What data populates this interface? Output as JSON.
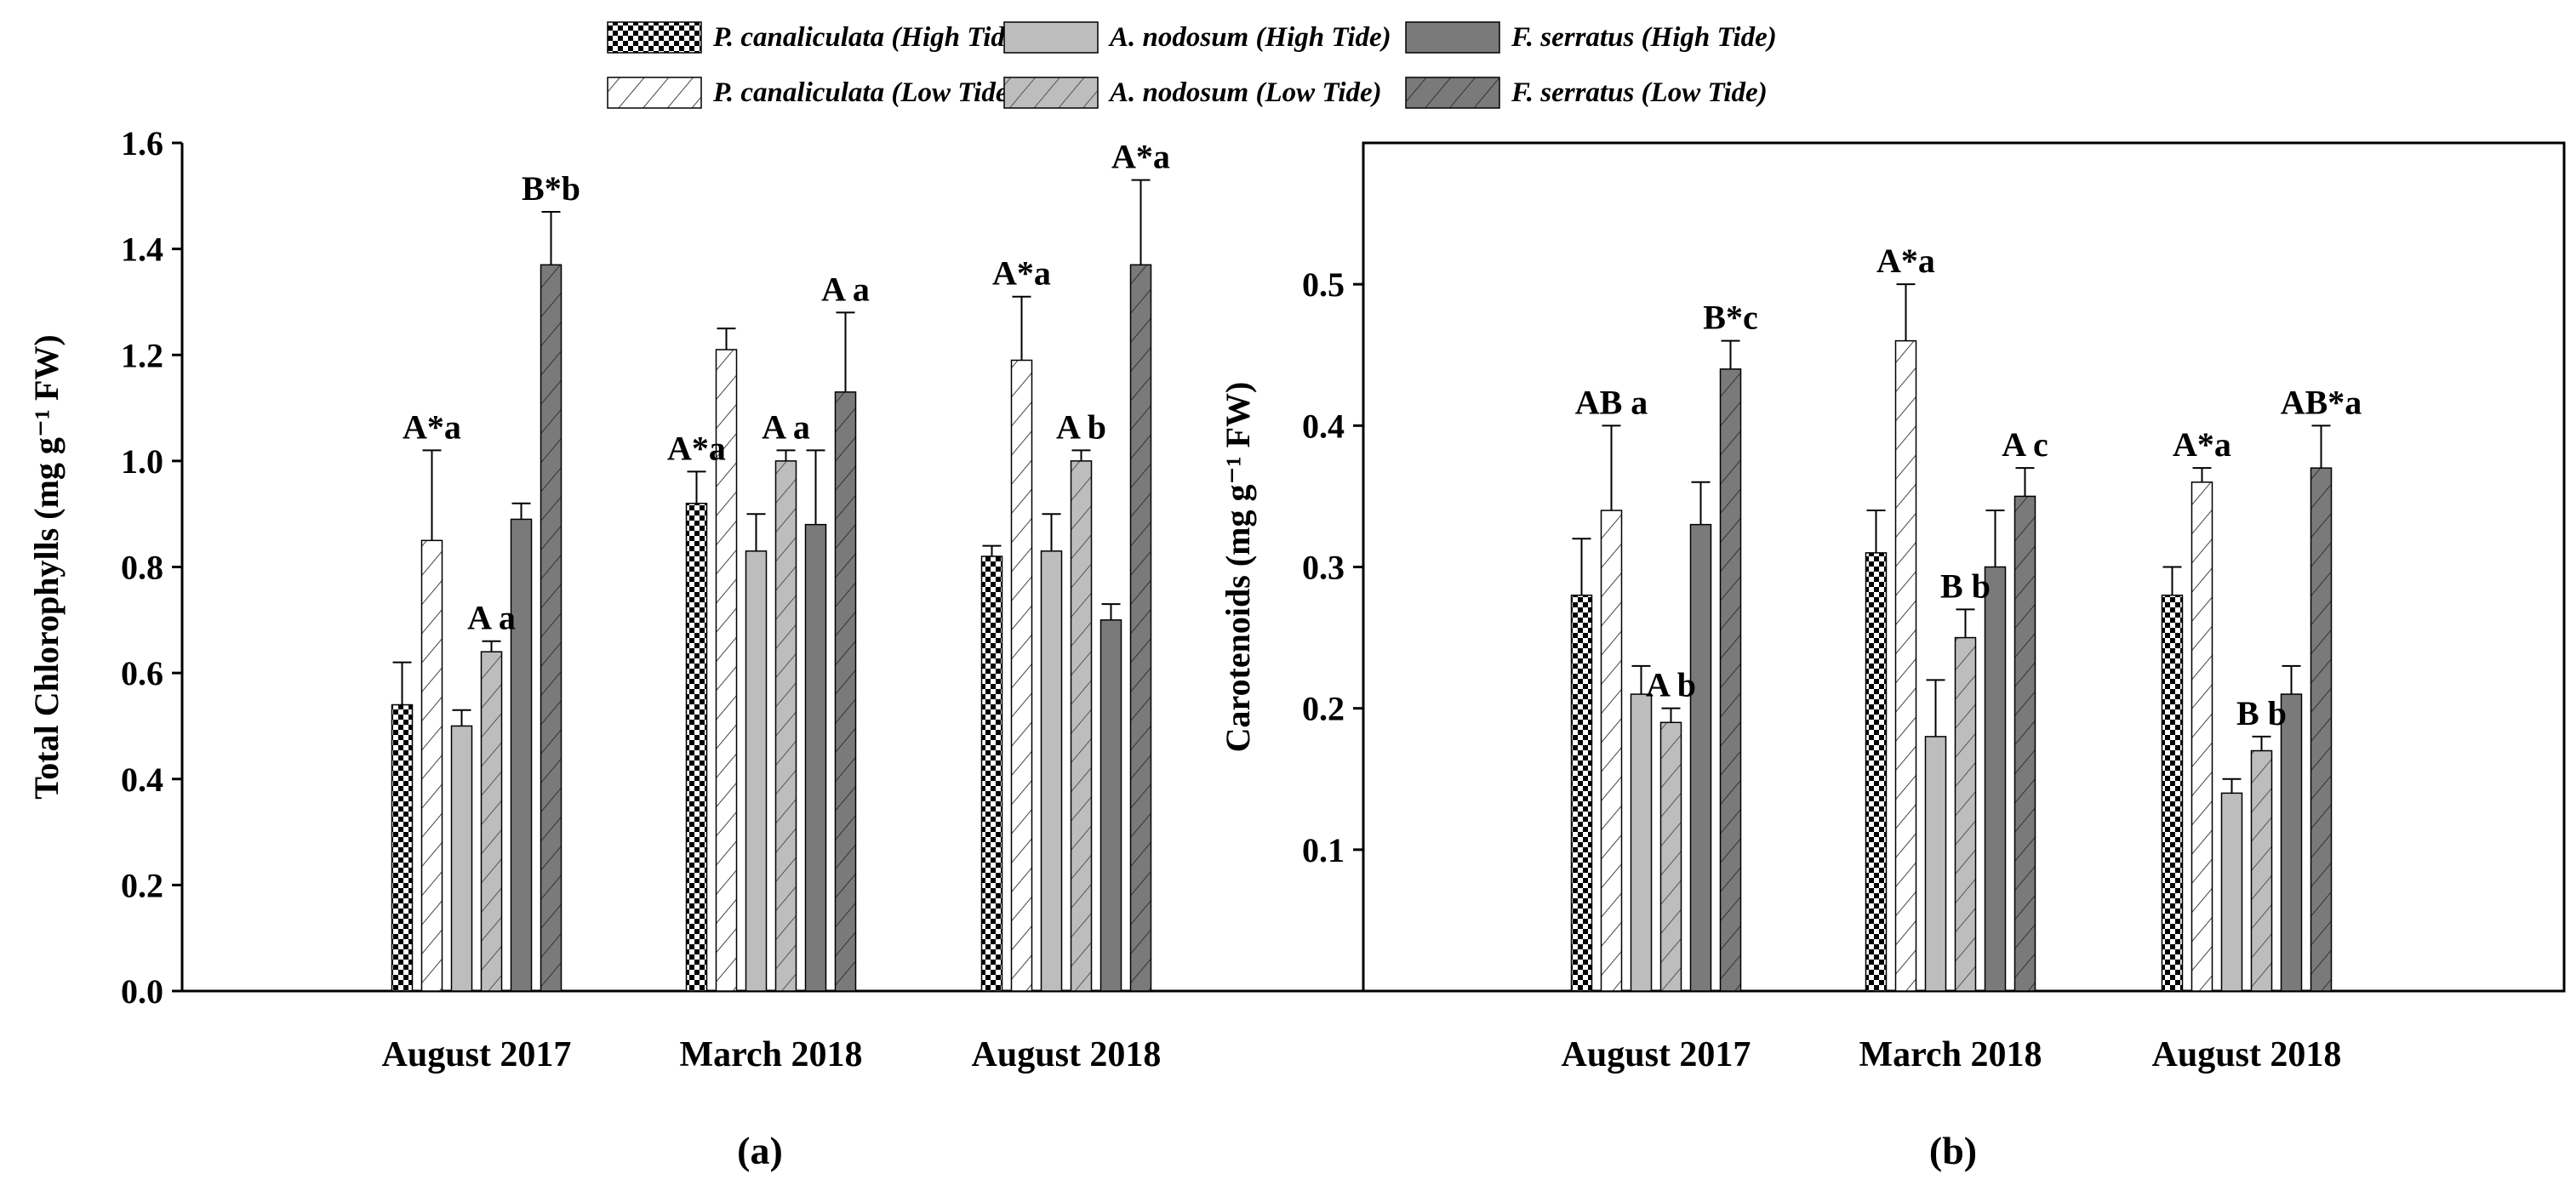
{
  "figure": {
    "panel_labels": [
      "(a)",
      "(b)"
    ]
  },
  "legend": [
    {
      "name": "P. canaliculata (High Tide)",
      "pattern": "checker"
    },
    {
      "name": "A. nodosum (High Tide)",
      "pattern": "light-solid"
    },
    {
      "name": "F. serratus (High Tide)",
      "pattern": "dark-solid"
    },
    {
      "name": "P. canaliculata (Low Tide)",
      "pattern": "white-hatch"
    },
    {
      "name": "A. nodosum (Low Tide)",
      "pattern": "light-hatch"
    },
    {
      "name": "F. serratus (Low Tide)",
      "pattern": "dark-hatch"
    }
  ],
  "colors": {
    "axis": "#000000",
    "white": "#ffffff",
    "light_bar": "#bdbdbd",
    "dark_bar": "#7a7a7a",
    "hatch": "#444444"
  },
  "chart_data": [
    {
      "type": "bar",
      "panel": "(a)",
      "title": "",
      "xlabel": "",
      "ylabel": "Total Chlorophylls (mg g⁻¹ FW)",
      "ylim": [
        0,
        1.6
      ],
      "yticks": [
        "0.0",
        "0.2",
        "0.4",
        "0.6",
        "0.8",
        "1.0",
        "1.2",
        "1.4",
        "1.6"
      ],
      "categories": [
        "August 2017",
        "March 2018",
        "August 2018"
      ],
      "series": [
        {
          "name": "P. canaliculata (High Tide)",
          "values": [
            0.54,
            0.92,
            0.82
          ],
          "errors": [
            0.08,
            0.06,
            0.02
          ]
        },
        {
          "name": "P. canaliculata (Low Tide)",
          "values": [
            0.85,
            1.21,
            1.19
          ],
          "errors": [
            0.17,
            0.04,
            0.12
          ]
        },
        {
          "name": "A. nodosum (High Tide)",
          "values": [
            0.5,
            0.83,
            0.83
          ],
          "errors": [
            0.03,
            0.07,
            0.07
          ]
        },
        {
          "name": "A. nodosum (Low Tide)",
          "values": [
            0.64,
            1.0,
            1.0
          ],
          "errors": [
            0.02,
            0.02,
            0.02
          ]
        },
        {
          "name": "F. serratus (High Tide)",
          "values": [
            0.89,
            0.88,
            0.7
          ],
          "errors": [
            0.03,
            0.14,
            0.03
          ]
        },
        {
          "name": "F. serratus (Low Tide)",
          "values": [
            1.37,
            1.13,
            1.37
          ],
          "errors": [
            0.1,
            0.15,
            0.16
          ]
        }
      ],
      "annotations": [
        {
          "text": "A*a",
          "category": 0,
          "series": 1
        },
        {
          "text": "A a",
          "category": 0,
          "series": 3
        },
        {
          "text": "B*b",
          "category": 0,
          "series": 5
        },
        {
          "text": "A*a",
          "category": 1,
          "series": 0
        },
        {
          "text": "A a",
          "category": 1,
          "series": 3
        },
        {
          "text": "A a",
          "category": 1,
          "series": 5
        },
        {
          "text": "A*a",
          "category": 2,
          "series": 1
        },
        {
          "text": "A b",
          "category": 2,
          "series": 3
        },
        {
          "text": "A*a",
          "category": 2,
          "series": 5
        }
      ]
    },
    {
      "type": "bar",
      "panel": "(b)",
      "title": "",
      "xlabel": "",
      "ylabel": "Carotenoids (mg g⁻¹ FW)",
      "ylim": [
        0,
        0.6
      ],
      "yticks": [
        "0.1",
        "0.2",
        "0.3",
        "0.4",
        "0.5"
      ],
      "categories": [
        "August 2017",
        "March 2018",
        "August 2018"
      ],
      "series": [
        {
          "name": "P. canaliculata (High Tide)",
          "values": [
            0.28,
            0.31,
            0.28
          ],
          "errors": [
            0.04,
            0.03,
            0.02
          ]
        },
        {
          "name": "P. canaliculata (Low Tide)",
          "values": [
            0.34,
            0.46,
            0.36
          ],
          "errors": [
            0.06,
            0.04,
            0.01
          ]
        },
        {
          "name": "A. nodosum (High Tide)",
          "values": [
            0.21,
            0.18,
            0.14
          ],
          "errors": [
            0.02,
            0.04,
            0.01
          ]
        },
        {
          "name": "A. nodosum (Low Tide)",
          "values": [
            0.19,
            0.25,
            0.17
          ],
          "errors": [
            0.01,
            0.02,
            0.01
          ]
        },
        {
          "name": "F. serratus (High Tide)",
          "values": [
            0.33,
            0.3,
            0.21
          ],
          "errors": [
            0.03,
            0.04,
            0.02
          ]
        },
        {
          "name": "F. serratus (Low Tide)",
          "values": [
            0.44,
            0.35,
            0.37
          ],
          "errors": [
            0.02,
            0.02,
            0.03
          ]
        }
      ],
      "annotations": [
        {
          "text": "AB a",
          "category": 0,
          "series": 1
        },
        {
          "text": "A b",
          "category": 0,
          "series": 3
        },
        {
          "text": "B*c",
          "category": 0,
          "series": 5
        },
        {
          "text": "A*a",
          "category": 1,
          "series": 1
        },
        {
          "text": "B b",
          "category": 1,
          "series": 3
        },
        {
          "text": "A c",
          "category": 1,
          "series": 5
        },
        {
          "text": "A*a",
          "category": 2,
          "series": 1
        },
        {
          "text": "B b",
          "category": 2,
          "series": 3
        },
        {
          "text": "AB*a",
          "category": 2,
          "series": 5
        }
      ]
    }
  ]
}
